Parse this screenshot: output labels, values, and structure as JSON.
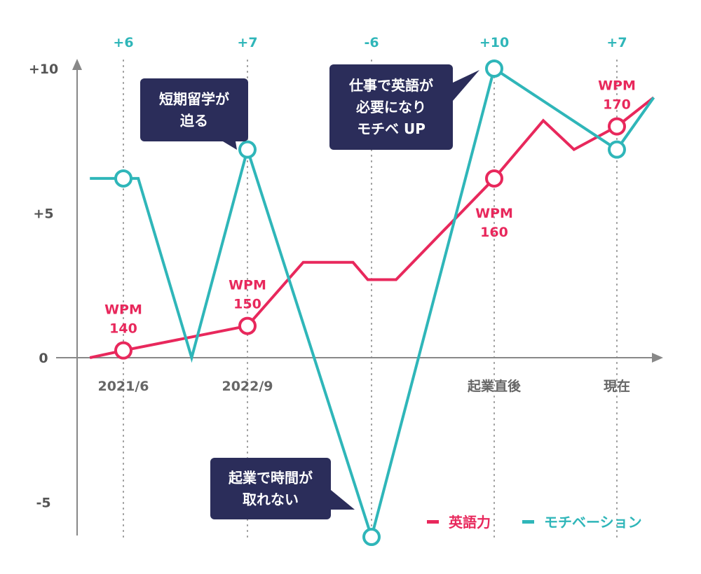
{
  "colors": {
    "english": "#e8285c",
    "motivation": "#2fb6b9",
    "axis": "#888888",
    "callout": "#2b2d5a",
    "guide": "#999999"
  },
  "chart_data": {
    "type": "line",
    "x_categories": [
      {
        "label": "2021/6",
        "top": "+6"
      },
      {
        "label": "2022/9",
        "top": "+7"
      },
      {
        "label": "",
        "top": "-6"
      },
      {
        "label": "起業直後",
        "top": "+10"
      },
      {
        "label": "現在",
        "top": "+7"
      }
    ],
    "y_ticks": [
      "+10",
      "+5",
      "0",
      "-5"
    ],
    "ylim": [
      -6.3,
      10.5
    ],
    "series": [
      {
        "name": "英語力",
        "color": "#e8285c",
        "points": [
          [
            -0.27,
            0
          ],
          [
            0,
            0.25
          ],
          [
            1,
            1.1
          ],
          [
            1.45,
            3.3
          ],
          [
            1.85,
            3.3
          ],
          [
            1.97,
            2.7
          ],
          [
            2.2,
            2.7
          ],
          [
            3,
            6.2
          ],
          [
            3.4,
            8.2
          ],
          [
            3.65,
            7.2
          ],
          [
            4,
            8
          ],
          [
            4.3,
            9
          ]
        ],
        "markers": [
          {
            "i": 0,
            "y": 0.25,
            "label": [
              "WPM",
              "140"
            ],
            "pos": "above"
          },
          {
            "i": 1,
            "y": 1.1,
            "label": [
              "WPM",
              "150"
            ],
            "pos": "above"
          },
          {
            "i": 3,
            "y": 6.2,
            "label": [
              "WPM",
              "160"
            ],
            "pos": "below"
          },
          {
            "i": 4,
            "y": 8,
            "label": [
              "WPM",
              "170"
            ],
            "pos": "above"
          }
        ]
      },
      {
        "name": "モチベーション",
        "color": "#2fb6b9",
        "points": [
          [
            -0.27,
            6.2
          ],
          [
            0.12,
            6.2
          ],
          [
            0.55,
            0
          ],
          [
            1,
            7.2
          ],
          [
            2,
            -6.2
          ],
          [
            3,
            10
          ],
          [
            4,
            7.2
          ],
          [
            4.3,
            9
          ]
        ],
        "markers": [
          {
            "i": 0,
            "y": 6.2
          },
          {
            "i": 1,
            "y": 7.2
          },
          {
            "i": 2,
            "y": -6.2
          },
          {
            "i": 3,
            "y": 10
          },
          {
            "i": 4,
            "y": 7.2
          }
        ]
      }
    ],
    "annotations": [
      {
        "lines": [
          "短期留学が",
          "迫る"
        ],
        "target": [
          1,
          7.2
        ]
      },
      {
        "lines": [
          "仕事で英語が",
          "必要になり",
          "モチベ UP"
        ],
        "target": [
          3,
          10
        ]
      },
      {
        "lines": [
          "起業で時間が",
          "取れない"
        ],
        "target": [
          2,
          -6.2
        ]
      }
    ]
  }
}
